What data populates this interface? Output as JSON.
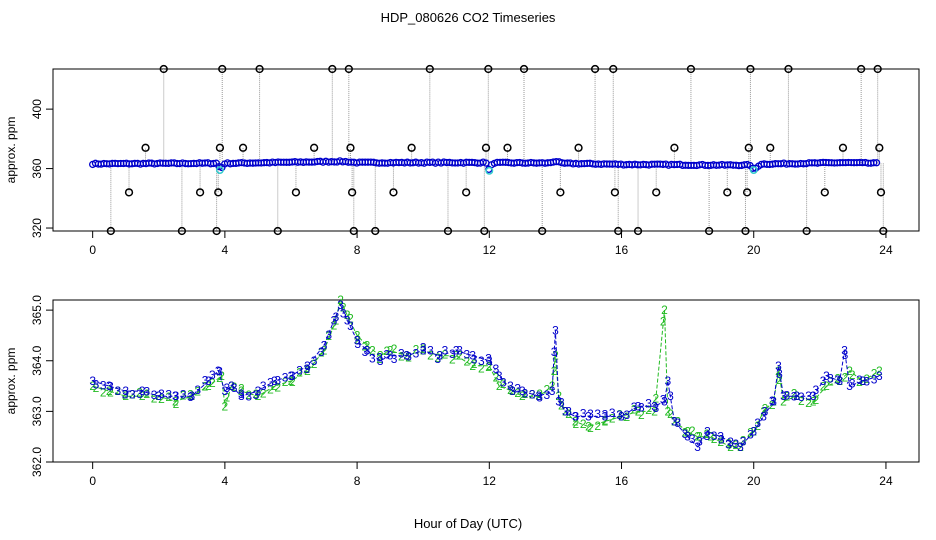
{
  "title": "HDP_080626  CO2 Timeseries",
  "xlabel": "Hour of Day (UTC)",
  "colors": {
    "outlier": "#000000",
    "raw": "#0000cc",
    "flagged": "#33cccc",
    "series2": "#22bb22",
    "series3": "#0000cc",
    "connector": "#999999",
    "axis": "#000000"
  },
  "chart_data": [
    {
      "type": "scatter",
      "name": "top-panel",
      "ylabel": "approx. ppm",
      "xlim": [
        -1.2,
        25
      ],
      "ylim": [
        318,
        427
      ],
      "xticks": [
        0,
        4,
        8,
        12,
        16,
        20,
        24
      ],
      "yticks": [
        320,
        360,
        400
      ],
      "baseline": [
        [
          0,
          363.2
        ],
        [
          3.8,
          363.6
        ],
        [
          3.85,
          359
        ],
        [
          4,
          363.5
        ],
        [
          7.5,
          364.8
        ],
        [
          7.7,
          364.6
        ],
        [
          8,
          364.0
        ],
        [
          11.9,
          364.0
        ],
        [
          12.0,
          358.5
        ],
        [
          12.1,
          363.9
        ],
        [
          13.8,
          363.7
        ],
        [
          14.0,
          365
        ],
        [
          14.2,
          363.5
        ],
        [
          15.9,
          362.9
        ],
        [
          16,
          362.8
        ],
        [
          17.5,
          362.6
        ],
        [
          18.5,
          362.4
        ],
        [
          19.9,
          362.3
        ],
        [
          20.0,
          359
        ],
        [
          20.2,
          363.0
        ],
        [
          22.7,
          364
        ],
        [
          23.8,
          363.5
        ]
      ],
      "flagged": [
        [
          3.85,
          359
        ],
        [
          12.0,
          358.5
        ],
        [
          20.0,
          359
        ]
      ],
      "outliers": [
        [
          0.55,
          318
        ],
        [
          1.1,
          344
        ],
        [
          1.6,
          374
        ],
        [
          2.15,
          427
        ],
        [
          2.7,
          318
        ],
        [
          3.25,
          344
        ],
        [
          3.75,
          318
        ],
        [
          3.8,
          344
        ],
        [
          3.85,
          374
        ],
        [
          3.92,
          427
        ],
        [
          4.55,
          374
        ],
        [
          5.05,
          427
        ],
        [
          5.6,
          318
        ],
        [
          6.15,
          344
        ],
        [
          6.7,
          374
        ],
        [
          7.25,
          427
        ],
        [
          7.75,
          427
        ],
        [
          7.8,
          374
        ],
        [
          7.85,
          344
        ],
        [
          7.9,
          318
        ],
        [
          8.55,
          318
        ],
        [
          9.1,
          344
        ],
        [
          9.65,
          374
        ],
        [
          10.2,
          427
        ],
        [
          10.75,
          318
        ],
        [
          11.3,
          344
        ],
        [
          11.85,
          318
        ],
        [
          11.9,
          374
        ],
        [
          11.97,
          427
        ],
        [
          12.55,
          374
        ],
        [
          13.05,
          427
        ],
        [
          13.6,
          318
        ],
        [
          14.15,
          344
        ],
        [
          14.7,
          374
        ],
        [
          15.2,
          427
        ],
        [
          15.75,
          427
        ],
        [
          15.8,
          344
        ],
        [
          15.9,
          318
        ],
        [
          16.5,
          318
        ],
        [
          17.05,
          344
        ],
        [
          17.6,
          374
        ],
        [
          18.1,
          427
        ],
        [
          18.65,
          318
        ],
        [
          19.2,
          344
        ],
        [
          19.75,
          318
        ],
        [
          19.8,
          344
        ],
        [
          19.85,
          374
        ],
        [
          19.9,
          427
        ],
        [
          20.5,
          374
        ],
        [
          21.05,
          427
        ],
        [
          21.6,
          318
        ],
        [
          22.15,
          344
        ],
        [
          22.7,
          374
        ],
        [
          23.25,
          427
        ],
        [
          23.75,
          427
        ],
        [
          23.8,
          374
        ],
        [
          23.85,
          344
        ],
        [
          23.92,
          318
        ]
      ]
    },
    {
      "type": "line",
      "name": "bottom-panel",
      "ylabel": "approx. ppm",
      "xlim": [
        -1.2,
        25
      ],
      "ylim": [
        362,
        365.2
      ],
      "xticks": [
        0,
        4,
        8,
        12,
        16,
        20,
        24
      ],
      "yticks": [
        362.0,
        363.0,
        364.0,
        365.0
      ],
      "yticklabels": [
        "362.0",
        "363.0",
        "364.0",
        "365.0"
      ],
      "series": [
        {
          "name": "2",
          "x": [
            0,
            0.5,
            1,
            1.5,
            2,
            2.5,
            3,
            3.5,
            3.9,
            4.0,
            4.2,
            4.5,
            5,
            5.5,
            6,
            6.5,
            7,
            7.3,
            7.5,
            7.7,
            8,
            8.3,
            8.7,
            9,
            9.5,
            10,
            10.5,
            11,
            11.5,
            12,
            12.3,
            12.7,
            13,
            13.5,
            13.9,
            14.0,
            14.1,
            14.3,
            14.6,
            15,
            15.5,
            16,
            16.5,
            17,
            17.3,
            17.4,
            17.6,
            18,
            18.3,
            18.7,
            19,
            19.3,
            19.6,
            20,
            20.3,
            20.6,
            20.75,
            20.9,
            21.3,
            21.8,
            22.2,
            22.6,
            22.9,
            23.3,
            23.8
          ],
          "y": [
            363.5,
            363.4,
            363.3,
            363.3,
            363.3,
            363.2,
            363.3,
            363.5,
            363.7,
            363.1,
            363.5,
            363.4,
            363.3,
            363.5,
            363.6,
            363.8,
            364.2,
            364.7,
            365.2,
            364.9,
            364.5,
            364.3,
            364.1,
            364.2,
            364.1,
            364.2,
            364.1,
            364.1,
            363.9,
            363.9,
            363.5,
            363.4,
            363.3,
            363.3,
            363.5,
            364.1,
            363.3,
            363.0,
            362.8,
            362.7,
            362.8,
            362.9,
            363.0,
            363.0,
            365.0,
            363.0,
            362.8,
            362.6,
            362.5,
            362.5,
            362.4,
            362.3,
            362.3,
            362.6,
            363.0,
            363.2,
            363.8,
            363.2,
            363.3,
            363.2,
            363.5,
            363.6,
            363.8,
            363.6,
            363.8
          ]
        },
        {
          "name": "3",
          "x": [
            0,
            0.5,
            1,
            1.5,
            2,
            2.5,
            3,
            3.5,
            3.8,
            4.0,
            4.2,
            4.5,
            5,
            5.5,
            6,
            6.5,
            7,
            7.3,
            7.5,
            7.7,
            8,
            8.3,
            8.7,
            9,
            9.5,
            10,
            10.5,
            11,
            11.5,
            12,
            12.3,
            12.7,
            13,
            13.5,
            13.9,
            14.0,
            14.1,
            14.3,
            14.6,
            15,
            15.5,
            16,
            16.5,
            17,
            17.3,
            17.4,
            17.6,
            18,
            18.3,
            18.6,
            19,
            19.3,
            19.6,
            20,
            20.3,
            20.6,
            20.75,
            20.9,
            21.3,
            21.8,
            22.2,
            22.6,
            22.75,
            22.9,
            23.3,
            23.8
          ],
          "y": [
            363.6,
            363.5,
            363.4,
            363.4,
            363.3,
            363.3,
            363.3,
            363.6,
            363.8,
            363.4,
            363.5,
            363.3,
            363.4,
            363.6,
            363.7,
            363.9,
            364.3,
            364.8,
            365.1,
            364.8,
            364.4,
            364.2,
            364.0,
            364.1,
            364.1,
            364.2,
            364.1,
            364.2,
            364.1,
            364.0,
            363.7,
            363.4,
            363.4,
            363.3,
            363.4,
            364.6,
            363.2,
            363.0,
            362.9,
            362.9,
            362.9,
            362.9,
            363.1,
            363.1,
            363.2,
            363.6,
            362.8,
            362.5,
            362.3,
            362.6,
            362.5,
            362.4,
            362.3,
            362.6,
            362.9,
            363.2,
            363.9,
            363.3,
            363.3,
            363.3,
            363.7,
            363.6,
            364.2,
            363.5,
            363.6,
            363.7
          ]
        }
      ]
    }
  ]
}
